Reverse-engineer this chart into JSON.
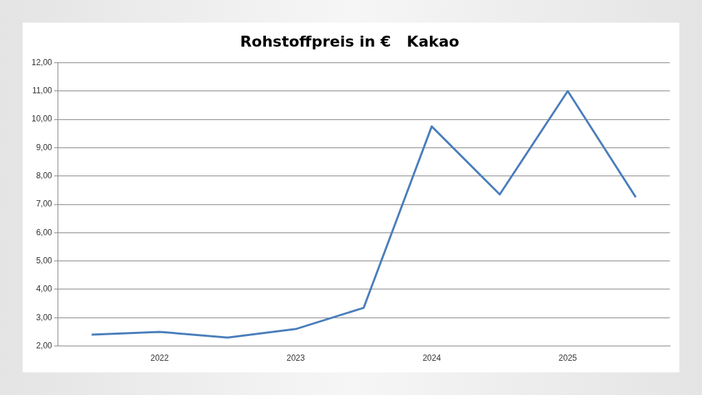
{
  "chart_data": {
    "type": "line",
    "title": "Rohstoffpreis in €   Kakao",
    "categories": [
      null,
      "2022",
      null,
      "2023",
      null,
      "2024",
      null,
      "2025",
      null
    ],
    "series": [
      {
        "color": "#4a7ebb",
        "values": [
          2.4,
          2.5,
          2.3,
          2.6,
          3.35,
          9.75,
          7.35,
          11.0,
          7.25
        ]
      }
    ],
    "ylim": [
      2,
      12
    ],
    "yticks": [
      {
        "value": 2,
        "label": "2,00"
      },
      {
        "value": 3,
        "label": "3,00"
      },
      {
        "value": 4,
        "label": "4,00"
      },
      {
        "value": 5,
        "label": "5,00"
      },
      {
        "value": 6,
        "label": "6,00"
      },
      {
        "value": 7,
        "label": "7,00"
      },
      {
        "value": 8,
        "label": "8,00"
      },
      {
        "value": 9,
        "label": "9,00"
      },
      {
        "value": 10,
        "label": "10,00"
      },
      {
        "value": 11,
        "label": "11,00"
      },
      {
        "value": 12,
        "label": "12,00"
      }
    ],
    "grid": "y",
    "legend": false,
    "marker": "none",
    "line_style": "solid"
  }
}
